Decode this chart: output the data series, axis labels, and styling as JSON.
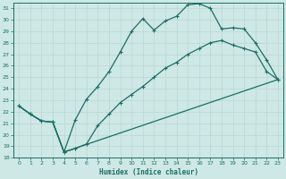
{
  "xlabel": "Humidex (Indice chaleur)",
  "bg_color": "#cde8e5",
  "line_color": "#1c6e65",
  "grid_color": "#b8d8d5",
  "xlim": [
    -0.5,
    23.5
  ],
  "ylim": [
    18,
    31.5
  ],
  "xticks": [
    0,
    1,
    2,
    3,
    4,
    5,
    6,
    7,
    8,
    9,
    10,
    11,
    12,
    13,
    14,
    15,
    16,
    17,
    18,
    19,
    20,
    21,
    22,
    23
  ],
  "yticks": [
    18,
    19,
    20,
    21,
    22,
    23,
    24,
    25,
    26,
    27,
    28,
    29,
    30,
    31
  ],
  "line1_x": [
    0,
    1,
    2,
    3,
    4,
    5,
    6,
    7,
    8,
    9,
    10,
    11,
    12,
    13,
    14,
    15,
    16,
    17,
    18,
    19,
    20,
    21,
    22,
    23
  ],
  "line1_y": [
    22.5,
    21.8,
    21.2,
    21.1,
    18.5,
    21.3,
    23.1,
    24.2,
    25.5,
    27.2,
    29.0,
    30.1,
    29.1,
    29.9,
    30.3,
    31.3,
    31.4,
    31.0,
    29.2,
    29.3,
    29.2,
    28.0,
    26.5,
    24.8
  ],
  "line2_x": [
    0,
    1,
    2,
    3,
    4,
    5,
    6,
    7,
    8,
    9,
    10,
    11,
    12,
    13,
    14,
    15,
    16,
    17,
    18,
    19,
    20,
    21,
    22,
    23
  ],
  "line2_y": [
    22.5,
    21.8,
    21.2,
    21.1,
    18.5,
    18.8,
    19.2,
    20.8,
    21.8,
    22.8,
    23.5,
    24.2,
    25.0,
    25.8,
    26.3,
    27.0,
    27.5,
    28.0,
    28.2,
    27.8,
    27.5,
    27.2,
    25.5,
    24.8
  ],
  "line3_x": [
    0,
    1,
    2,
    3,
    4,
    23
  ],
  "line3_y": [
    22.5,
    21.8,
    21.2,
    21.1,
    18.5,
    24.8
  ],
  "lw": 0.9,
  "ms": 2.5
}
